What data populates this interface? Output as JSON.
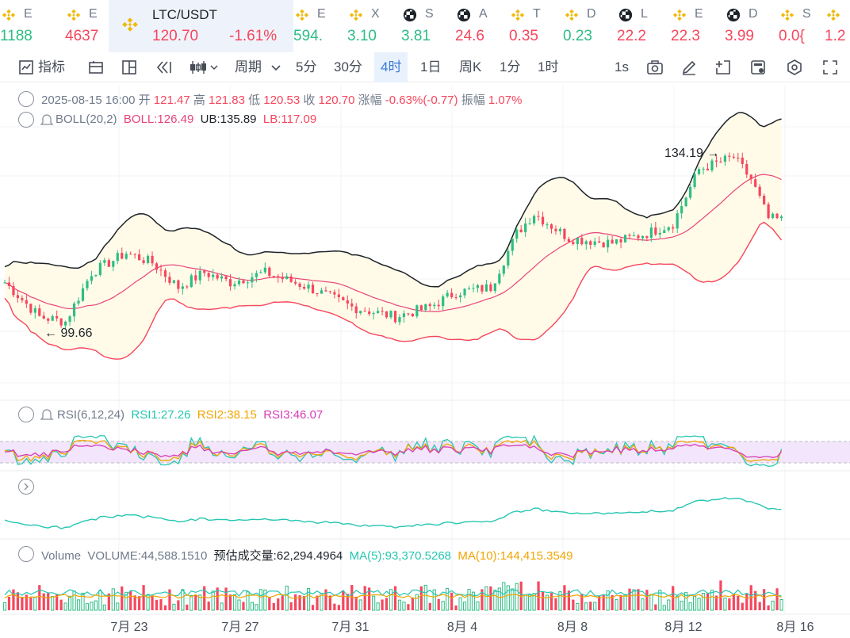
{
  "tickers": [
    {
      "name": "E",
      "price": "1188",
      "dir": "up",
      "icon": "bnb-diamond-icon"
    },
    {
      "name": "E",
      "price": "4637",
      "dir": "dn",
      "icon": "bnb-diamond-icon"
    },
    {
      "name": "LTC/USDT",
      "price": "120.70",
      "change": "-1.61%",
      "dir": "dn",
      "icon": "bnb-diamond-icon",
      "active": true
    },
    {
      "name": "E",
      "price": "594.",
      "dir": "up",
      "icon": "bnb-diamond-icon"
    },
    {
      "name": "X",
      "price": "3.10",
      "dir": "up",
      "icon": "bnb-diamond-icon"
    },
    {
      "name": "S",
      "price": "3.81",
      "dir": "up",
      "icon": "checker-ball-icon"
    },
    {
      "name": "A",
      "price": "24.6",
      "dir": "dn",
      "icon": "checker-ball-icon"
    },
    {
      "name": "T",
      "price": "0.35",
      "dir": "dn",
      "icon": "bnb-diamond-icon"
    },
    {
      "name": "D",
      "price": "0.23",
      "dir": "up",
      "icon": "bnb-diamond-icon"
    },
    {
      "name": "L",
      "price": "22.2",
      "dir": "dn",
      "icon": "checker-ball-icon"
    },
    {
      "name": "E",
      "price": "22.3",
      "dir": "dn",
      "icon": "bnb-diamond-icon"
    },
    {
      "name": "D",
      "price": "3.99",
      "dir": "dn",
      "icon": "checker-ball-icon"
    },
    {
      "name": "S",
      "price": "0.0{",
      "dir": "dn",
      "icon": "bnb-diamond-icon"
    },
    {
      "name": "",
      "price": "1.2",
      "dir": "dn",
      "icon": "bnb-diamond-icon"
    }
  ],
  "toolbar": {
    "indicators": "指标",
    "period": "周期",
    "periods": [
      "5分",
      "30分",
      "4时",
      "1日",
      "周K",
      "1分",
      "1时"
    ],
    "active_period": "4时",
    "interval": "1s"
  },
  "ohlc": {
    "date": "2025-08-15 16:00",
    "open_label": "开",
    "open": "121.47",
    "high_label": "高",
    "high": "121.83",
    "low_label": "低",
    "low": "120.53",
    "close_label": "收",
    "close": "120.70",
    "chg_label": "涨幅",
    "chg": "-0.63%(-0.77)",
    "amp_label": "振幅",
    "amp": "1.07%"
  },
  "boll": {
    "name": "BOLL(20,2)",
    "mid": "BOLL:126.49",
    "ub": "UB:135.89",
    "lb": "LB:117.09"
  },
  "rsi": {
    "name": "RSI(6,12,24)",
    "rsi1": "RSI1:27.26",
    "rsi2": "RSI2:38.15",
    "rsi3": "RSI3:46.07"
  },
  "volume": {
    "name": "Volume",
    "vol": "VOLUME:44,588.1510",
    "est": "预估成交量:62,294.4964",
    "ma5": "MA(5):93,370.5268",
    "ma10": "MA(10):144,415.3549"
  },
  "annotations": {
    "high": "134.19",
    "low": "99.66"
  },
  "xaxis": [
    "7月 23",
    "7月 27",
    "7月 31",
    "8月 4",
    "8月 8",
    "8月 12",
    "8月 16"
  ],
  "colors": {
    "up": "#2ebd85",
    "down": "#f6465d",
    "accent": "#3a7bd5",
    "boll_mid": "#e8447a",
    "ub": "#1e2329",
    "rsi1": "#26c6b0",
    "rsi2": "#f0a500",
    "rsi3": "#d63bb7",
    "ma5": "#26c6b0",
    "ma10": "#f0a500",
    "band_fill": "#fffbe8",
    "rsi_fill": "#f3e5fb"
  }
}
